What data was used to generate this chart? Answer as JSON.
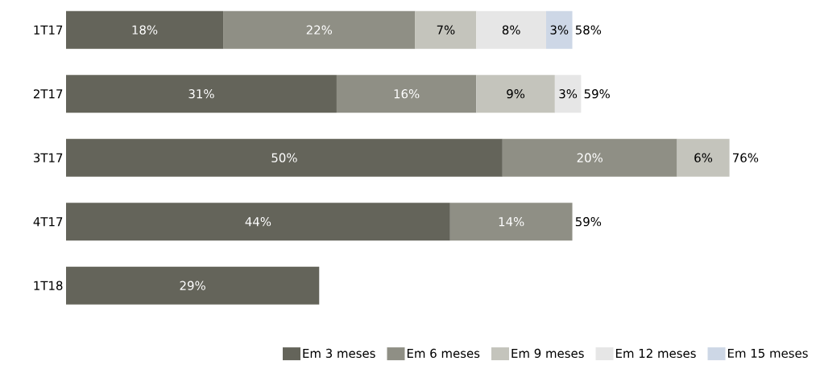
{
  "chart_data": {
    "type": "bar",
    "orientation": "horizontal",
    "stacked": true,
    "legend": "bottom",
    "categories": [
      "1T17",
      "2T17",
      "3T17",
      "4T17",
      "1T18"
    ],
    "series": [
      {
        "name": "Em 3 meses",
        "color": "#64645a",
        "values": [
          18,
          31,
          50,
          44,
          29
        ],
        "value_labels": [
          "18%",
          "31%",
          "50%",
          "44%",
          "29%"
        ]
      },
      {
        "name": "Em 6 meses",
        "color": "#8f8f85",
        "values": [
          22,
          16,
          20,
          14,
          null
        ],
        "value_labels": [
          "22%",
          "16%",
          "20%",
          "14%",
          null
        ]
      },
      {
        "name": "Em 9 meses",
        "color": "#c4c4bc",
        "values": [
          7,
          9,
          6,
          null,
          null
        ],
        "value_labels": [
          "7%",
          "9%",
          "6%",
          null,
          null
        ]
      },
      {
        "name": "Em 12 meses",
        "color": "#e6e6e6",
        "values": [
          8,
          3,
          null,
          null,
          null
        ],
        "value_labels": [
          "8%",
          "3%",
          null,
          null,
          null
        ]
      },
      {
        "name": "Em 15 meses",
        "color": "#cdd7e6",
        "values": [
          3,
          null,
          null,
          null,
          null
        ],
        "value_labels": [
          "3%",
          null,
          null,
          null,
          null
        ]
      }
    ],
    "totals": [
      "58%",
      "59%",
      "76%",
      "59%",
      null
    ]
  }
}
